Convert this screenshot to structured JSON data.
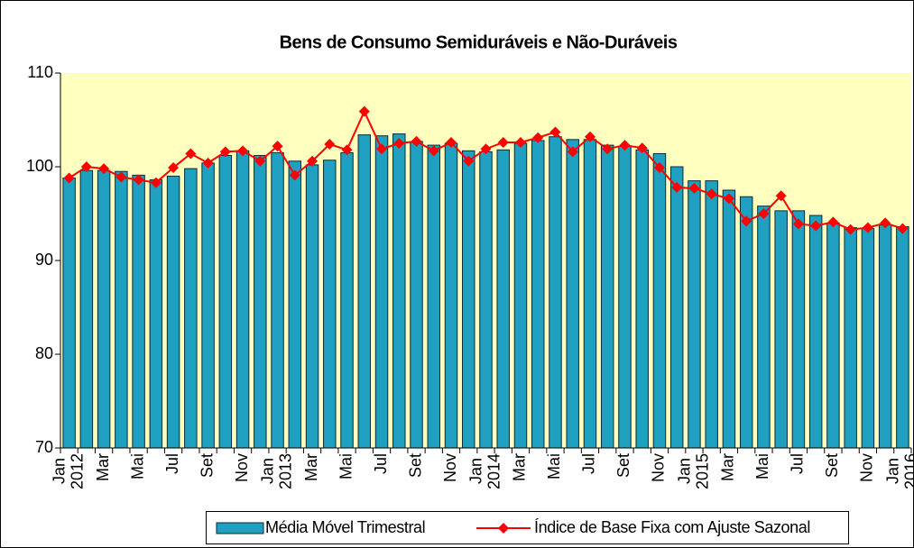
{
  "chart_data": {
    "type": "bar-line",
    "title": "Bens de Consumo Semiduráveis e Não-Duráveis",
    "categories": [
      "Jan 2012",
      null,
      "Mar",
      null,
      "Mai",
      null,
      "Jul",
      null,
      "Set",
      null,
      "Nov",
      null,
      "Jan 2013",
      null,
      "Mar",
      null,
      "Mai",
      null,
      "Jul",
      null,
      "Set",
      null,
      "Nov",
      null,
      "Jan 2014",
      null,
      "Mar",
      null,
      "Mai",
      null,
      "Jul",
      null,
      "Set",
      null,
      "Nov",
      null,
      "Jan 2015",
      null,
      "Mar",
      null,
      "Mai",
      null,
      "Jul",
      null,
      "Set",
      null,
      "Nov",
      null,
      "Jan 2016"
    ],
    "series": [
      {
        "name": "Média Móvel Trimestral",
        "type": "bar",
        "color": "#1fa0c0",
        "values": [
          98.8,
          99.6,
          99.6,
          99.5,
          99.1,
          98.6,
          99.0,
          99.8,
          100.4,
          101.2,
          101.7,
          101.2,
          101.5,
          100.6,
          100.2,
          100.7,
          101.5,
          103.4,
          103.3,
          103.5,
          102.7,
          102.3,
          102.5,
          101.7,
          101.6,
          101.8,
          102.5,
          102.8,
          103.2,
          102.9,
          102.9,
          102.3,
          102.2,
          101.8,
          101.4,
          100.0,
          98.5,
          98.5,
          97.5,
          96.8,
          95.8,
          95.3,
          95.3,
          94.8,
          94.0,
          93.5,
          93.4,
          93.8,
          93.6
        ]
      },
      {
        "name": "Índice de Base Fixa com Ajuste Sazonal",
        "type": "line",
        "color": "#ff0000",
        "values": [
          98.8,
          100.0,
          99.8,
          98.9,
          98.6,
          98.3,
          99.9,
          101.4,
          100.4,
          101.6,
          101.7,
          100.6,
          102.2,
          99.1,
          100.6,
          102.4,
          101.8,
          105.9,
          101.9,
          102.5,
          102.7,
          101.7,
          102.6,
          100.6,
          101.9,
          102.6,
          102.6,
          103.1,
          103.7,
          101.6,
          103.2,
          101.9,
          102.3,
          102.0,
          99.9,
          97.8,
          97.7,
          97.1,
          96.6,
          94.2,
          95.0,
          96.9,
          93.9,
          93.7,
          94.1,
          93.3,
          93.5,
          94.0,
          93.4
        ]
      }
    ],
    "ylim": [
      70,
      110
    ],
    "yticks": [
      70,
      80,
      90,
      100,
      110
    ],
    "plot_background": "#ffffc0",
    "legend": "bottom"
  }
}
